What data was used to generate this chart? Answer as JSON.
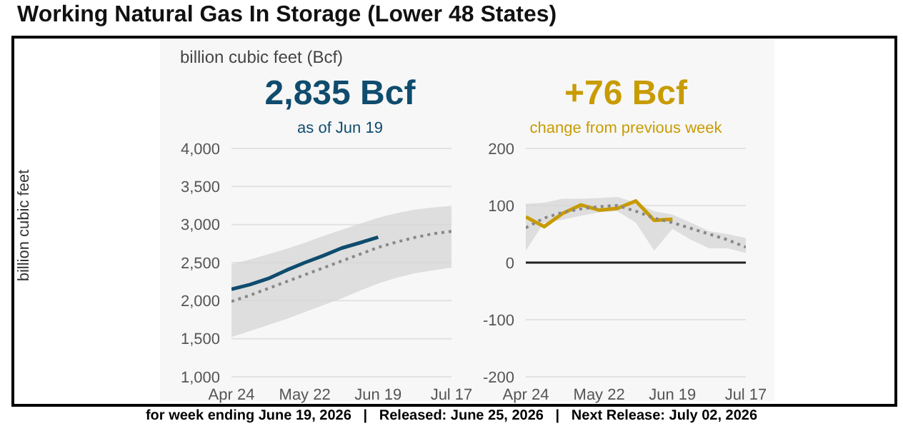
{
  "chart_data": [
    {
      "type": "line",
      "title": "Working Natural Gas In Storage (Lower 48 States)",
      "ylabel": "billion cubic feet",
      "annotations": [
        "billion cubic feet (Bcf)",
        "2,835 Bcf",
        "as of Jun 19",
        "for week ending June 19, 2026   |   Released: June 25, 2026   |   Next Release: July 02, 2026"
      ],
      "x": [
        "2026-04-24",
        "2026-05-01",
        "2026-05-08",
        "2026-05-15",
        "2026-05-22",
        "2026-05-29",
        "2026-06-05",
        "2026-06-12",
        "2026-06-19",
        "2026-06-26",
        "2026-07-03",
        "2026-07-10",
        "2026-07-17"
      ],
      "series": [
        {
          "color": "#0f4c6e",
          "line_style": "solid",
          "values": [
            2150,
            2210,
            2290,
            2400,
            2500,
            2590,
            2690,
            2760,
            2835,
            null,
            null,
            null,
            null
          ]
        },
        {
          "color": "#888888",
          "line_style": "dotted",
          "values": [
            1990,
            2070,
            2160,
            2250,
            2340,
            2430,
            2520,
            2610,
            2700,
            2770,
            2830,
            2880,
            2910
          ],
          "lower": [
            1522,
            1600,
            1680,
            1760,
            1850,
            1940,
            2030,
            2130,
            2226,
            2300,
            2360,
            2400,
            2434
          ],
          "upper": [
            2478,
            2540,
            2610,
            2680,
            2760,
            2850,
            2930,
            3010,
            3088,
            3150,
            3195,
            3225,
            3245
          ]
        }
      ],
      "xlim": [
        "2026-04-24",
        "2026-07-17"
      ],
      "xticks": [
        {
          "value": "2026-04-24",
          "label": "Apr 24"
        },
        {
          "value": "2026-05-22",
          "label": "May 22"
        },
        {
          "value": "2026-06-19",
          "label": "Jun 19"
        },
        {
          "value": "2026-07-17",
          "label": "Jul 17"
        }
      ],
      "ylim": [
        1000,
        4000
      ],
      "yticks": [
        {
          "value": 1000,
          "label": "1,000"
        },
        {
          "value": 1500,
          "label": "1,500"
        },
        {
          "value": 2000,
          "label": "2,000"
        },
        {
          "value": 2500,
          "label": "2,500"
        },
        {
          "value": 3000,
          "label": "3,000"
        },
        {
          "value": 3500,
          "label": "3,500"
        },
        {
          "value": 4000,
          "label": "4,000"
        }
      ],
      "grid": "y",
      "legend": false,
      "marker": "none"
    },
    {
      "type": "line",
      "title": "+76 Bcf",
      "subtitle": "change from previous week",
      "x": [
        "2026-04-24",
        "2026-05-01",
        "2026-05-08",
        "2026-05-15",
        "2026-05-22",
        "2026-05-29",
        "2026-06-05",
        "2026-06-12",
        "2026-06-19",
        "2026-06-26",
        "2026-07-03",
        "2026-07-10",
        "2026-07-17"
      ],
      "series": [
        {
          "color": "#c89b00",
          "line_style": "solid",
          "values": [
            80,
            63,
            86,
            101,
            92,
            95,
            108,
            74,
            76,
            null,
            null,
            null,
            null
          ]
        },
        {
          "color": "#888888",
          "line_style": "dotted",
          "values": [
            61,
            78,
            88,
            94,
            98,
            100,
            90,
            78,
            70,
            60,
            50,
            40,
            27
          ],
          "lower": [
            21,
            70,
            75,
            82,
            88,
            90,
            70,
            21,
            59,
            40,
            25,
            25,
            17
          ],
          "upper": [
            103,
            105,
            112,
            112,
            113,
            115,
            105,
            90,
            84,
            70,
            55,
            50,
            43
          ]
        }
      ],
      "xlim": [
        "2026-04-24",
        "2026-07-17"
      ],
      "xticks": [
        {
          "value": "2026-04-24",
          "label": "Apr 24"
        },
        {
          "value": "2026-05-22",
          "label": "May 22"
        },
        {
          "value": "2026-06-19",
          "label": "Jun 19"
        },
        {
          "value": "2026-07-17",
          "label": "Jul 17"
        }
      ],
      "ylim": [
        -200,
        200
      ],
      "yticks": [
        -200,
        -100,
        0,
        100,
        200
      ],
      "grid": "y",
      "legend": false,
      "marker": "none",
      "ref_lines": [
        {
          "axis": "y",
          "value": 0,
          "color": "#222222"
        }
      ]
    }
  ]
}
